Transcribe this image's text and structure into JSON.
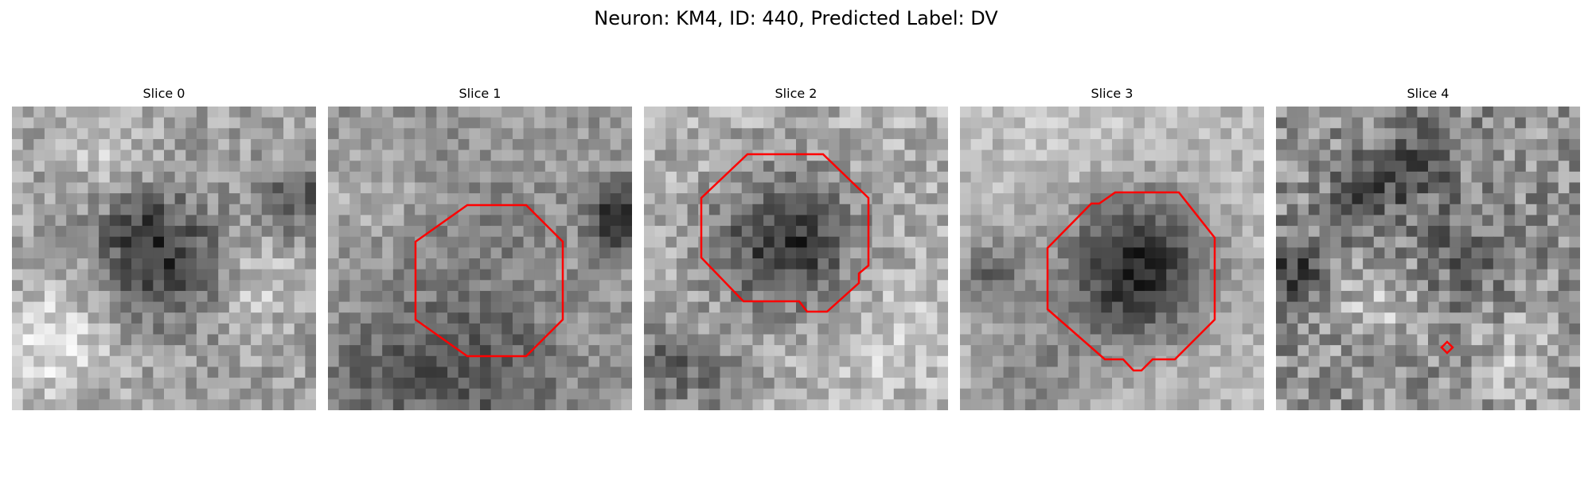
{
  "figure": {
    "title": "Neuron: KM4, ID: 440, Predicted Label: DV",
    "contour_color": "#ff0000",
    "colormap": "grayscale",
    "panels": [
      {
        "title": "Slice 0",
        "has_contour": false
      },
      {
        "title": "Slice 1",
        "has_contour": true
      },
      {
        "title": "Slice 2",
        "has_contour": true
      },
      {
        "title": "Slice 3",
        "has_contour": true
      },
      {
        "title": "Slice 4",
        "has_contour": true
      }
    ]
  }
}
